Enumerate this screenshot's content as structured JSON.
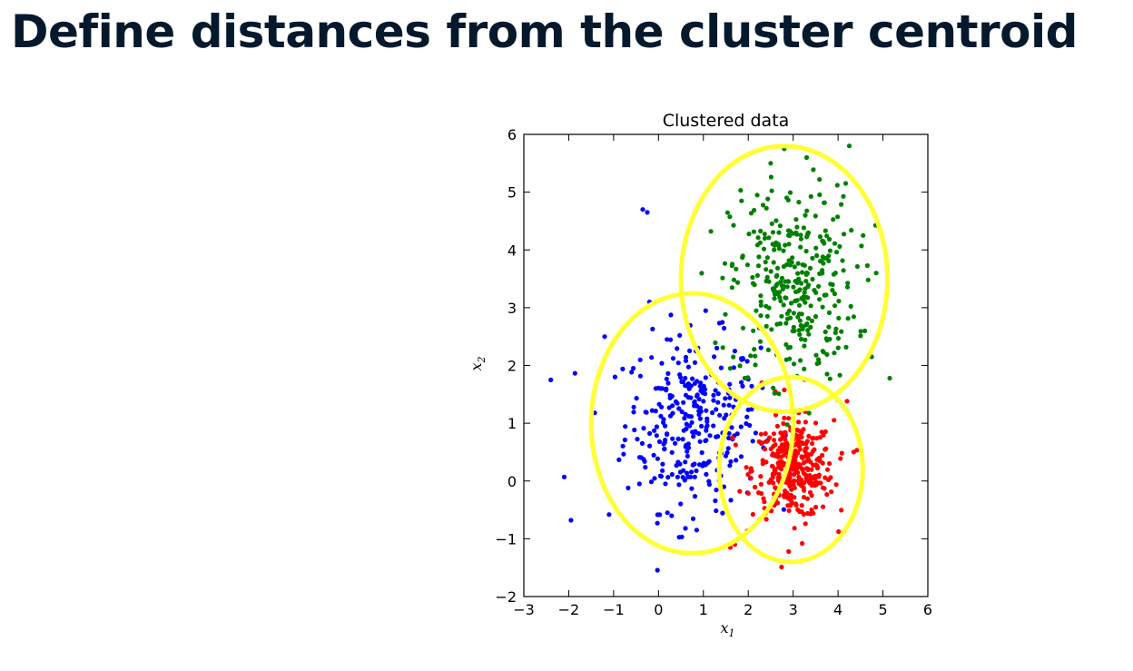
{
  "page": {
    "title": "Define distances from the cluster centroid"
  },
  "chart_data": {
    "type": "scatter",
    "title": "Clustered data",
    "xlabel": "x",
    "xlabel_sub": "1",
    "ylabel": "x",
    "ylabel_sub": "2",
    "xlim": [
      -3,
      6
    ],
    "ylim": [
      -2,
      6
    ],
    "xticks": [
      -3,
      -2,
      -1,
      0,
      1,
      2,
      3,
      4,
      5,
      6
    ],
    "yticks": [
      -2,
      -1,
      0,
      1,
      2,
      3,
      4,
      5,
      6
    ],
    "grid": false,
    "legend": "none",
    "series": [
      {
        "color": "#0000ff",
        "centroid": [
          0.75,
          1.0
        ],
        "sd": [
          0.75,
          0.75
        ],
        "count": 300,
        "points": [
          [
            -2.4,
            1.75
          ],
          [
            -2.1,
            0.07
          ],
          [
            -1.95,
            -0.68
          ],
          [
            -1.2,
            2.5
          ],
          [
            -1.1,
            -0.58
          ],
          [
            -0.35,
            4.7
          ],
          [
            -0.25,
            4.65
          ],
          [
            -0.2,
            3.1
          ],
          [
            0.2,
            -0.55
          ],
          [
            0.6,
            -0.82
          ],
          [
            0.85,
            -0.85
          ],
          [
            1.05,
            2.95
          ],
          [
            1.3,
            2.3
          ],
          [
            1.7,
            2.25
          ]
        ]
      },
      {
        "color": "#ff0000",
        "centroid": [
          3.0,
          0.2
        ],
        "sd": [
          0.45,
          0.42
        ],
        "count": 350,
        "points": [
          [
            1.6,
            -1.15
          ],
          [
            1.7,
            -1.1
          ],
          [
            2.9,
            -1.22
          ],
          [
            3.2,
            -1.08
          ],
          [
            4.0,
            1.4
          ],
          [
            4.2,
            1.38
          ],
          [
            4.35,
            0.5
          ],
          [
            1.65,
            0.75
          ],
          [
            2.3,
            1.7
          ],
          [
            2.6,
            1.55
          ]
        ]
      },
      {
        "color": "#008000",
        "centroid": [
          3.0,
          3.4
        ],
        "sd": [
          0.7,
          0.85
        ],
        "count": 330,
        "points": [
          [
            2.5,
            5.5
          ],
          [
            2.8,
            5.75
          ],
          [
            3.3,
            5.6
          ],
          [
            4.25,
            5.8
          ],
          [
            5.15,
            1.78
          ],
          [
            4.75,
            2.15
          ],
          [
            1.6,
            1.95
          ],
          [
            1.85,
            4.85
          ],
          [
            2.2,
            4.95
          ],
          [
            4.85,
            3.6
          ]
        ]
      }
    ],
    "circles": [
      {
        "cx": 0.75,
        "cy": 1.0,
        "r": 2.25,
        "color": "#ffff33"
      },
      {
        "cx": 2.95,
        "cy": 0.2,
        "r": 1.6,
        "color": "#ffff33"
      },
      {
        "cx": 2.8,
        "cy": 3.5,
        "r": 2.3,
        "color": "#ffff33"
      }
    ]
  }
}
